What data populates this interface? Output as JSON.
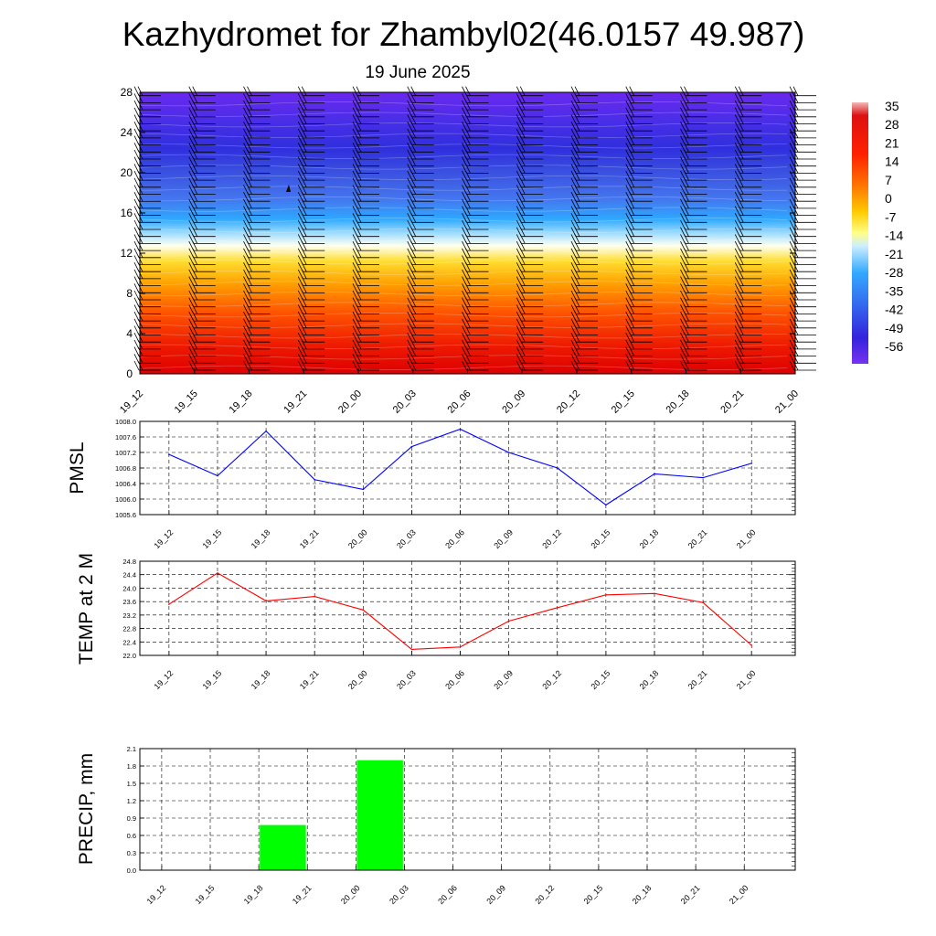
{
  "title": "Kazhydromet for Zhambyl02(46.0157 49.987)",
  "subtitle": "19 June 2025",
  "time_labels": [
    "19_12",
    "19_15",
    "19_18",
    "19_21",
    "20_00",
    "20_03",
    "20_06",
    "20_09",
    "20_12",
    "20_15",
    "20_18",
    "20_21",
    "21_00"
  ],
  "colors": {
    "pmsl_line": "#0000ff",
    "temp_line": "#ff0000",
    "precip_bar": "#00ff00",
    "grid": "#888888",
    "axis": "#000000"
  },
  "chart_data": [
    {
      "type": "heatmap",
      "title": "",
      "xlabel": "",
      "ylabel": "",
      "x": [
        "19_12",
        "19_15",
        "19_18",
        "19_21",
        "20_00",
        "20_03",
        "20_06",
        "20_09",
        "20_12",
        "20_15",
        "20_18",
        "20_21",
        "21_00"
      ],
      "yticks": [
        0,
        4,
        8,
        12,
        16,
        20,
        24,
        28
      ],
      "ylim": [
        0,
        28
      ],
      "temperature_profile": [
        {
          "y": 0,
          "value": 30
        },
        {
          "y": 4,
          "value": 22
        },
        {
          "y": 8,
          "value": 10
        },
        {
          "y": 12.8,
          "value": 0
        },
        {
          "y": 13.5,
          "value": -10
        },
        {
          "y": 16,
          "value": -30
        },
        {
          "y": 18,
          "value": -45
        },
        {
          "y": 20,
          "value": -50
        },
        {
          "y": 24,
          "value": -55
        },
        {
          "y": 28,
          "value": -60
        }
      ],
      "colorbar": {
        "labels": [
          "35",
          "28",
          "21",
          "14",
          "7",
          "0",
          "-7",
          "-14",
          "-21",
          "-28",
          "-35",
          "-42",
          "-49",
          "-56"
        ]
      },
      "overlay": "wind barbs"
    },
    {
      "type": "line",
      "ylabel": "PMSL",
      "series": [
        {
          "values": [
            1007.15,
            1006.6,
            1007.75,
            1006.5,
            1006.25,
            1007.35,
            1007.8,
            1007.2,
            1006.8,
            1005.85,
            1006.65,
            1006.55,
            1006.92
          ]
        }
      ],
      "ylim": [
        1005.6,
        1008.0
      ],
      "yticks": [
        "1005.6",
        "1006.0",
        "1006.4",
        "1006.8",
        "1007.2",
        "1007.6",
        "1008.0"
      ],
      "grid": true
    },
    {
      "type": "line",
      "ylabel": "TEMP at 2 M",
      "series": [
        {
          "values": [
            23.52,
            24.45,
            23.62,
            23.75,
            23.35,
            22.18,
            22.25,
            23.02,
            23.42,
            23.8,
            23.84,
            23.57,
            22.3
          ]
        }
      ],
      "ylim": [
        22.0,
        24.8
      ],
      "yticks": [
        "22.0",
        "22.4",
        "22.8",
        "23.2",
        "23.6",
        "24.0",
        "24.4",
        "24.8"
      ],
      "grid": true
    },
    {
      "type": "bar",
      "ylabel": "PRECIP, mm",
      "categories": [
        "19_12",
        "19_15",
        "19_18",
        "19_21",
        "20_00",
        "20_03",
        "20_06",
        "20_09",
        "20_12",
        "20_15",
        "20_18",
        "20_21",
        "21_00"
      ],
      "values": [
        0,
        0,
        0.78,
        0,
        1.9,
        0,
        0,
        0,
        0,
        0,
        0,
        0,
        0
      ],
      "ylim": [
        0.0,
        2.1
      ],
      "yticks": [
        "0.0",
        "0.3",
        "0.6",
        "0.9",
        "1.2",
        "1.5",
        "1.8",
        "2.1"
      ],
      "grid": true
    }
  ]
}
